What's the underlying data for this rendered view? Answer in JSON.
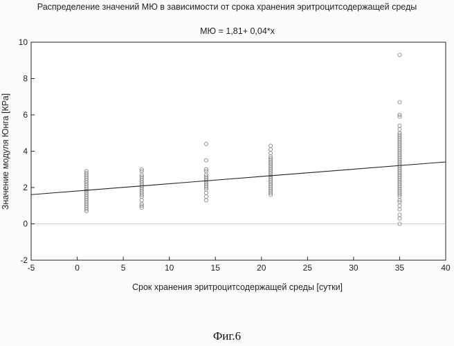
{
  "chart_data": {
    "type": "scatter",
    "title": "Распределение значений МЮ в зависимости от срока хранения эритроцитсодержащей среды",
    "subtitle": "МЮ = 1,81+ 0,04*x",
    "xlabel": "Срок хранения эритроцитсодержащей среды [сутки]",
    "ylabel": "Значение модуля Юнга [КРа]",
    "xlim": [
      -5,
      40
    ],
    "ylim": [
      -2,
      10
    ],
    "x_ticks": [
      -5,
      0,
      5,
      10,
      15,
      20,
      25,
      30,
      35,
      40
    ],
    "y_ticks": [
      -2,
      0,
      2,
      4,
      6,
      8,
      10
    ],
    "grid": false,
    "reference_line_y": 0,
    "regression": {
      "intercept": 1.81,
      "slope": 0.04
    },
    "series": [
      {
        "points": [
          [
            1,
            0.7
          ],
          [
            1,
            0.8
          ],
          [
            1,
            0.9
          ],
          [
            1,
            1.0
          ],
          [
            1,
            1.1
          ],
          [
            1,
            1.2
          ],
          [
            1,
            1.3
          ],
          [
            1,
            1.4
          ],
          [
            1,
            1.5
          ],
          [
            1,
            1.6
          ],
          [
            1,
            1.7
          ],
          [
            1,
            1.8
          ],
          [
            1,
            1.9
          ],
          [
            1,
            2.0
          ],
          [
            1,
            2.1
          ],
          [
            1,
            2.2
          ],
          [
            1,
            2.3
          ],
          [
            1,
            2.4
          ],
          [
            1,
            2.5
          ],
          [
            1,
            2.6
          ],
          [
            1,
            2.7
          ],
          [
            1,
            2.8
          ],
          [
            1,
            2.9
          ],
          [
            7,
            0.9
          ],
          [
            7,
            1.0
          ],
          [
            7,
            1.1
          ],
          [
            7,
            1.3
          ],
          [
            7,
            1.5
          ],
          [
            7,
            1.6
          ],
          [
            7,
            1.7
          ],
          [
            7,
            1.8
          ],
          [
            7,
            1.9
          ],
          [
            7,
            2.0
          ],
          [
            7,
            2.1
          ],
          [
            7,
            2.2
          ],
          [
            7,
            2.3
          ],
          [
            7,
            2.4
          ],
          [
            7,
            2.5
          ],
          [
            7,
            2.6
          ],
          [
            7,
            2.7
          ],
          [
            7,
            2.9
          ],
          [
            7,
            3.0
          ],
          [
            14,
            1.3
          ],
          [
            14,
            1.5
          ],
          [
            14,
            1.7
          ],
          [
            14,
            1.9
          ],
          [
            14,
            2.0
          ],
          [
            14,
            2.1
          ],
          [
            14,
            2.2
          ],
          [
            14,
            2.3
          ],
          [
            14,
            2.4
          ],
          [
            14,
            2.5
          ],
          [
            14,
            2.6
          ],
          [
            14,
            2.7
          ],
          [
            14,
            2.9
          ],
          [
            14,
            3.0
          ],
          [
            14,
            3.5
          ],
          [
            14,
            4.4
          ],
          [
            21,
            1.6
          ],
          [
            21,
            1.7
          ],
          [
            21,
            1.8
          ],
          [
            21,
            1.9
          ],
          [
            21,
            2.0
          ],
          [
            21,
            2.1
          ],
          [
            21,
            2.2
          ],
          [
            21,
            2.3
          ],
          [
            21,
            2.4
          ],
          [
            21,
            2.5
          ],
          [
            21,
            2.6
          ],
          [
            21,
            2.7
          ],
          [
            21,
            2.8
          ],
          [
            21,
            2.9
          ],
          [
            21,
            3.0
          ],
          [
            21,
            3.1
          ],
          [
            21,
            3.2
          ],
          [
            21,
            3.3
          ],
          [
            21,
            3.4
          ],
          [
            21,
            3.5
          ],
          [
            21,
            3.6
          ],
          [
            21,
            3.7
          ],
          [
            21,
            3.9
          ],
          [
            21,
            4.1
          ],
          [
            21,
            4.3
          ],
          [
            35,
            0.0
          ],
          [
            35,
            0.3
          ],
          [
            35,
            0.5
          ],
          [
            35,
            0.8
          ],
          [
            35,
            1.0
          ],
          [
            35,
            1.2
          ],
          [
            35,
            1.3
          ],
          [
            35,
            1.5
          ],
          [
            35,
            1.6
          ],
          [
            35,
            1.7
          ],
          [
            35,
            1.8
          ],
          [
            35,
            1.9
          ],
          [
            35,
            2.0
          ],
          [
            35,
            2.1
          ],
          [
            35,
            2.2
          ],
          [
            35,
            2.3
          ],
          [
            35,
            2.4
          ],
          [
            35,
            2.5
          ],
          [
            35,
            2.6
          ],
          [
            35,
            2.7
          ],
          [
            35,
            2.8
          ],
          [
            35,
            2.9
          ],
          [
            35,
            3.0
          ],
          [
            35,
            3.1
          ],
          [
            35,
            3.2
          ],
          [
            35,
            3.3
          ],
          [
            35,
            3.4
          ],
          [
            35,
            3.5
          ],
          [
            35,
            3.6
          ],
          [
            35,
            3.7
          ],
          [
            35,
            3.8
          ],
          [
            35,
            3.9
          ],
          [
            35,
            4.0
          ],
          [
            35,
            4.1
          ],
          [
            35,
            4.2
          ],
          [
            35,
            4.3
          ],
          [
            35,
            4.4
          ],
          [
            35,
            4.5
          ],
          [
            35,
            4.6
          ],
          [
            35,
            4.7
          ],
          [
            35,
            4.8
          ],
          [
            35,
            4.9
          ],
          [
            35,
            5.0
          ],
          [
            35,
            5.2
          ],
          [
            35,
            5.4
          ],
          [
            35,
            5.9
          ],
          [
            35,
            6.0
          ],
          [
            35,
            6.7
          ],
          [
            35,
            9.3
          ]
        ]
      }
    ]
  },
  "figure_caption": "Фиг.6",
  "colors": {
    "marker": "#8a8a8a",
    "line": "#222222",
    "axis": "#222222",
    "zero_line": "#bfbfbf",
    "background": "#fbfbfb"
  }
}
